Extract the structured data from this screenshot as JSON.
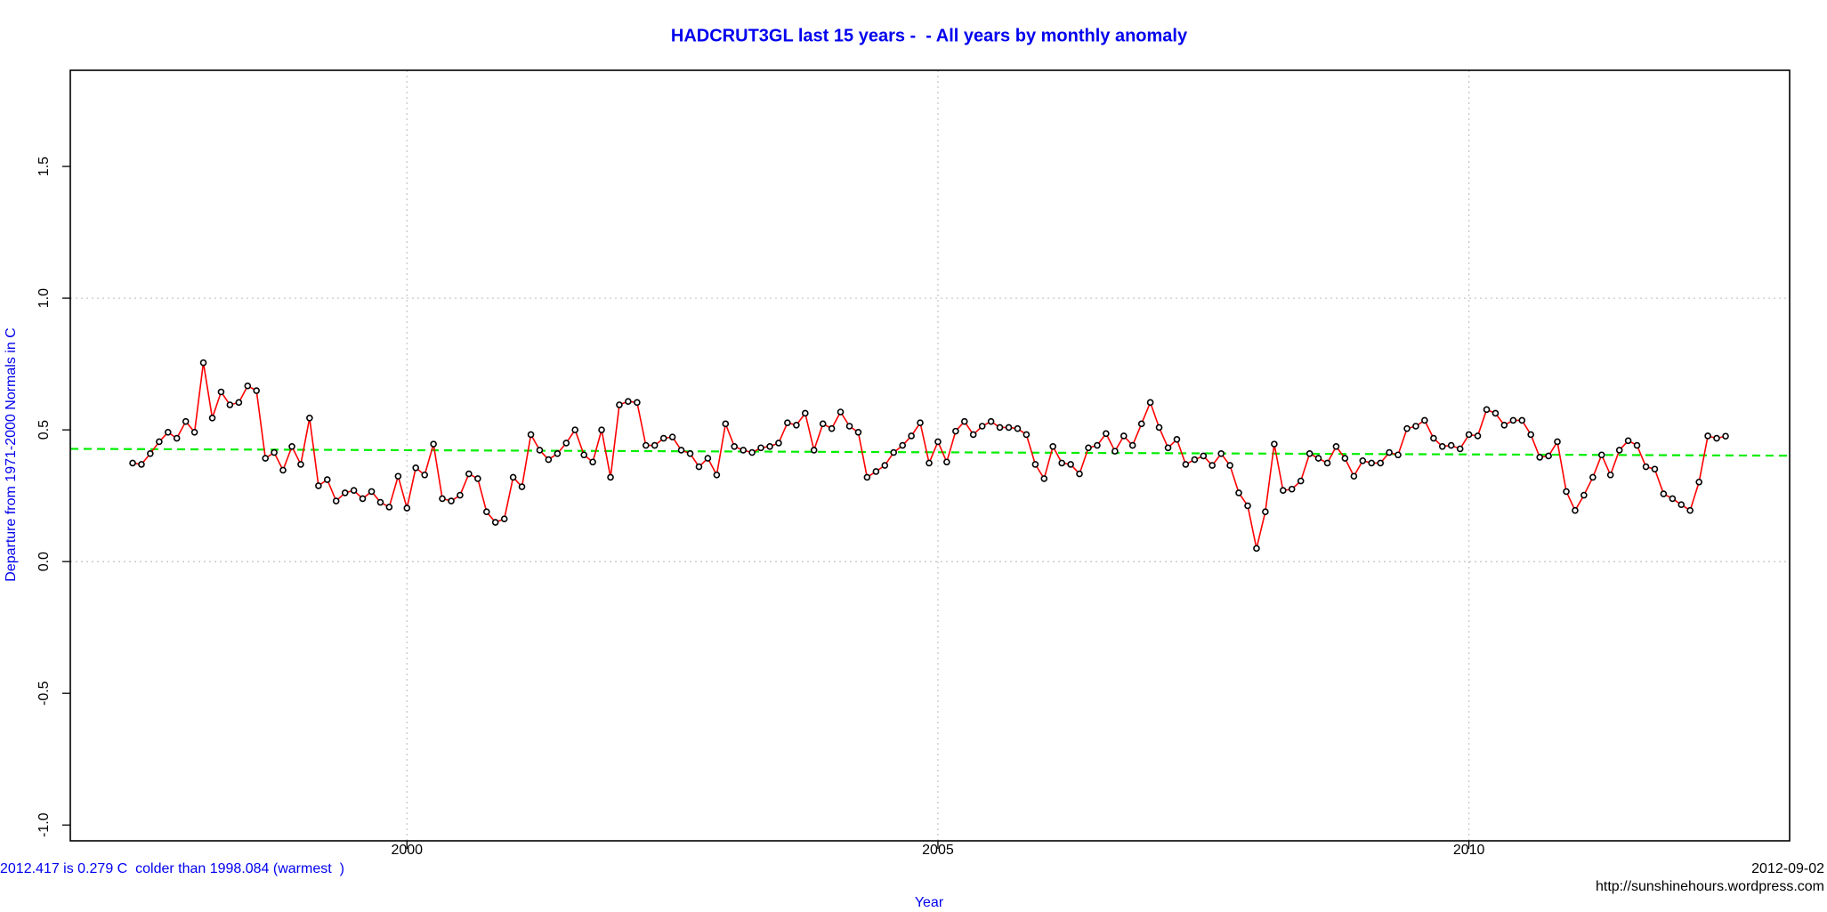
{
  "chart_data": {
    "type": "line",
    "title": "HADCRUT3GL last 15 years -  - All years by monthly anomaly",
    "x_label": "Year",
    "y_label": "Departure from 1971-2000 Normals in C",
    "annotation": "2012.417 is 0.279 C  colder than 1998.084 (warmest  )",
    "date": "2012-09-02",
    "source": "http://sunshinehours.wordpress.com",
    "xlim": [
      1996.83,
      2013.02
    ],
    "ylim": [
      -1.06,
      1.865
    ],
    "xticks": [
      2000,
      2005,
      2010
    ],
    "yticks": [
      {
        "value": -1,
        "label": "-1.0"
      },
      -0.5,
      {
        "value": 0,
        "label": "0.0"
      },
      0.5,
      {
        "value": 1,
        "label": "1.0"
      },
      1.5
    ],
    "grid_x": [
      2000,
      2005,
      2010
    ],
    "grid_y": [
      0,
      1
    ],
    "x": [
      1997.417,
      1997.5,
      1997.583,
      1997.667,
      1997.75,
      1997.833,
      1997.917,
      1998.0,
      1998.083,
      1998.167,
      1998.25,
      1998.333,
      1998.417,
      1998.5,
      1998.583,
      1998.667,
      1998.75,
      1998.833,
      1998.917,
      1999.0,
      1999.083,
      1999.167,
      1999.25,
      1999.333,
      1999.417,
      1999.5,
      1999.583,
      1999.667,
      1999.75,
      1999.833,
      1999.917,
      2000.0,
      2000.083,
      2000.167,
      2000.25,
      2000.333,
      2000.417,
      2000.5,
      2000.583,
      2000.667,
      2000.75,
      2000.833,
      2000.917,
      2001.0,
      2001.083,
      2001.167,
      2001.25,
      2001.333,
      2001.417,
      2001.5,
      2001.583,
      2001.667,
      2001.75,
      2001.833,
      2001.917,
      2002.0,
      2002.083,
      2002.167,
      2002.25,
      2002.333,
      2002.417,
      2002.5,
      2002.583,
      2002.667,
      2002.75,
      2002.833,
      2002.917,
      2003.0,
      2003.083,
      2003.167,
      2003.25,
      2003.333,
      2003.417,
      2003.5,
      2003.583,
      2003.667,
      2003.75,
      2003.833,
      2003.917,
      2004.0,
      2004.083,
      2004.167,
      2004.25,
      2004.333,
      2004.417,
      2004.5,
      2004.583,
      2004.667,
      2004.75,
      2004.833,
      2004.917,
      2005.0,
      2005.083,
      2005.167,
      2005.25,
      2005.333,
      2005.417,
      2005.5,
      2005.583,
      2005.667,
      2005.75,
      2005.833,
      2005.917,
      2006.0,
      2006.083,
      2006.167,
      2006.25,
      2006.333,
      2006.417,
      2006.5,
      2006.583,
      2006.667,
      2006.75,
      2006.833,
      2006.917,
      2007.0,
      2007.083,
      2007.167,
      2007.25,
      2007.333,
      2007.417,
      2007.5,
      2007.583,
      2007.667,
      2007.75,
      2007.833,
      2007.917,
      2008.0,
      2008.083,
      2008.167,
      2008.25,
      2008.333,
      2008.417,
      2008.5,
      2008.583,
      2008.667,
      2008.75,
      2008.833,
      2008.917,
      2009.0,
      2009.083,
      2009.167,
      2009.25,
      2009.333,
      2009.417,
      2009.5,
      2009.583,
      2009.667,
      2009.75,
      2009.833,
      2009.917,
      2010.0,
      2010.083,
      2010.167,
      2010.25,
      2010.333,
      2010.417,
      2010.5,
      2010.583,
      2010.667,
      2010.75,
      2010.833,
      2010.917,
      2011.0,
      2011.083,
      2011.167,
      2011.25,
      2011.333,
      2011.417,
      2011.5,
      2011.583,
      2011.667,
      2011.75,
      2011.833,
      2011.917,
      2012.0,
      2012.083,
      2012.167,
      2012.25,
      2012.333,
      2012.417
    ],
    "series": [
      {
        "color": "#ff0000",
        "marker_color": "#000000",
        "values": [
          0.374,
          0.369,
          0.41,
          0.455,
          0.491,
          0.468,
          0.532,
          0.491,
          0.755,
          0.545,
          0.644,
          0.595,
          0.604,
          0.667,
          0.649,
          0.392,
          0.414,
          0.347,
          0.437,
          0.369,
          0.545,
          0.288,
          0.311,
          0.23,
          0.261,
          0.27,
          0.239,
          0.266,
          0.225,
          0.207,
          0.324,
          0.203,
          0.356,
          0.329,
          0.446,
          0.239,
          0.23,
          0.252,
          0.333,
          0.315,
          0.189,
          0.149,
          0.162,
          0.32,
          0.284,
          0.482,
          0.423,
          0.387,
          0.41,
          0.45,
          0.5,
          0.405,
          0.378,
          0.5,
          0.32,
          0.595,
          0.608,
          0.604,
          0.441,
          0.441,
          0.468,
          0.473,
          0.423,
          0.41,
          0.36,
          0.392,
          0.329,
          0.523,
          0.437,
          0.423,
          0.414,
          0.432,
          0.437,
          0.45,
          0.527,
          0.518,
          0.563,
          0.423,
          0.523,
          0.505,
          0.568,
          0.514,
          0.491,
          0.32,
          0.342,
          0.365,
          0.414,
          0.441,
          0.477,
          0.527,
          0.374,
          0.455,
          0.378,
          0.495,
          0.532,
          0.482,
          0.514,
          0.532,
          0.509,
          0.509,
          0.505,
          0.482,
          0.369,
          0.315,
          0.437,
          0.374,
          0.369,
          0.333,
          0.432,
          0.441,
          0.486,
          0.419,
          0.477,
          0.441,
          0.523,
          0.604,
          0.509,
          0.432,
          0.464,
          0.369,
          0.387,
          0.401,
          0.365,
          0.41,
          0.365,
          0.261,
          0.212,
          0.05,
          0.189,
          0.446,
          0.27,
          0.275,
          0.306,
          0.41,
          0.392,
          0.374,
          0.437,
          0.392,
          0.324,
          0.383,
          0.374,
          0.374,
          0.414,
          0.405,
          0.505,
          0.514,
          0.536,
          0.468,
          0.437,
          0.441,
          0.428,
          0.482,
          0.477,
          0.577,
          0.563,
          0.518,
          0.536,
          0.536,
          0.482,
          0.396,
          0.401,
          0.455,
          0.266,
          0.194,
          0.252,
          0.32,
          0.405,
          0.329,
          0.423,
          0.459,
          0.441,
          0.36,
          0.351,
          0.257,
          0.239,
          0.216,
          0.194,
          0.302,
          0.477,
          0.468,
          0.476
        ]
      }
    ],
    "trend": {
      "color": "#00ee00",
      "x": [
        1996.83,
        2013.02
      ],
      "values": [
        0.428,
        0.402
      ]
    }
  }
}
